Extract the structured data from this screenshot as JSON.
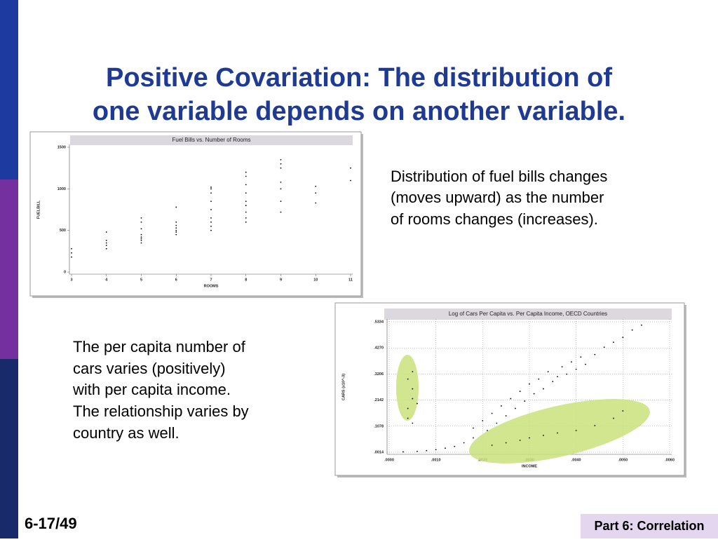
{
  "title": [
    "Positive Covariation: The distribution of",
    "one variable depends on another variable."
  ],
  "note_right": [
    "Distribution of fuel bills changes",
    "(moves upward) as the number",
    "of rooms changes (increases)."
  ],
  "note_left": [
    "The per capita number of",
    "cars varies (positively)",
    "with per capita income.",
    "The relationship varies by",
    "country as well."
  ],
  "footer": {
    "page": "6-17/49",
    "section": "Part 6: Correlation"
  },
  "chart_data": [
    {
      "type": "scatter",
      "title": "Fuel Bills vs. Number of Rooms",
      "x_label": "ROOMS",
      "y_label": "FUELBILL",
      "color": "#000000",
      "grid": false,
      "xlim": [
        3,
        11
      ],
      "xticks": [
        3,
        4,
        5,
        6,
        7,
        8,
        9,
        10,
        11
      ],
      "ylim": [
        0,
        1500
      ],
      "yticks": [
        0,
        500,
        1000,
        1500
      ],
      "x": [
        3,
        3,
        3,
        4,
        4,
        4,
        4,
        4,
        5,
        5,
        5,
        5,
        5,
        5,
        5,
        5,
        6,
        6,
        6,
        6,
        6,
        6,
        6,
        7,
        7,
        7,
        7,
        7,
        7,
        7,
        7,
        7,
        8,
        8,
        8,
        8,
        8,
        8,
        8,
        8,
        8,
        9,
        9,
        9,
        9,
        9,
        9,
        9,
        10,
        10,
        10,
        11,
        11
      ],
      "values": [
        180,
        230,
        280,
        280,
        320,
        350,
        380,
        480,
        350,
        380,
        400,
        420,
        450,
        520,
        600,
        650,
        450,
        480,
        500,
        530,
        560,
        600,
        780,
        500,
        550,
        600,
        650,
        750,
        850,
        950,
        1000,
        1020,
        600,
        650,
        720,
        800,
        850,
        950,
        1050,
        1150,
        1200,
        720,
        850,
        1000,
        1080,
        1250,
        1300,
        1350,
        830,
        950,
        1030,
        1100,
        1250
      ]
    },
    {
      "type": "scatter",
      "title": "Log of Cars Per Capita vs. Per Capita Income, OECD Countries",
      "x_label": "INCOME",
      "y_label": "CARS (x10^-3)",
      "color": "#000000",
      "grid": true,
      "xlim": [
        0,
        0.006
      ],
      "xticks": [
        {
          "value": 0,
          "label": ".0000"
        },
        {
          "value": 0.001,
          "label": ".0010"
        },
        {
          "value": 0.002,
          "label": ".0020"
        },
        {
          "value": 0.003,
          "label": ".0030"
        },
        {
          "value": 0.004,
          "label": ".0040"
        },
        {
          "value": 0.005,
          "label": ".0050"
        },
        {
          "value": 0.006,
          "label": ".0060"
        }
      ],
      "ylim": [
        0.0014,
        0.5334
      ],
      "yticks": [
        {
          "value": 0.0014,
          "label": ".0014"
        },
        {
          "value": 0.1078,
          "label": ".1078"
        },
        {
          "value": 0.2142,
          "label": ".2142"
        },
        {
          "value": 0.3206,
          "label": ".3206"
        },
        {
          "value": 0.427,
          "label": ".4270"
        },
        {
          "value": 0.5334,
          "label": ".5334"
        }
      ],
      "x": [
        0.0004,
        0.0004,
        0.0005,
        0.0005,
        0.0004,
        0.0005,
        0.0006,
        0.0005,
        0.0003,
        0.0006,
        0.0008,
        0.001,
        0.0012,
        0.0014,
        0.0016,
        0.0018,
        0.0018,
        0.002,
        0.0021,
        0.0022,
        0.0023,
        0.0024,
        0.0025,
        0.0026,
        0.0027,
        0.0028,
        0.0029,
        0.003,
        0.0031,
        0.0032,
        0.0033,
        0.0034,
        0.0035,
        0.0036,
        0.0037,
        0.0038,
        0.0039,
        0.004,
        0.0041,
        0.0042,
        0.0044,
        0.0046,
        0.0048,
        0.005,
        0.0052,
        0.0054,
        0.0022,
        0.0025,
        0.0028,
        0.003,
        0.0033,
        0.0036,
        0.004,
        0.0044,
        0.0048,
        0.005
      ],
      "values": [
        0.14,
        0.18,
        0.22,
        0.26,
        0.3,
        0.33,
        0.2,
        0.12,
        0.003,
        0.005,
        0.008,
        0.012,
        0.018,
        0.025,
        0.04,
        0.06,
        0.1,
        0.13,
        0.09,
        0.16,
        0.12,
        0.19,
        0.15,
        0.22,
        0.18,
        0.25,
        0.21,
        0.28,
        0.24,
        0.3,
        0.26,
        0.33,
        0.29,
        0.31,
        0.35,
        0.32,
        0.37,
        0.34,
        0.39,
        0.36,
        0.4,
        0.43,
        0.45,
        0.47,
        0.5,
        0.52,
        0.03,
        0.04,
        0.05,
        0.06,
        0.07,
        0.08,
        0.09,
        0.11,
        0.14,
        0.17
      ]
    }
  ]
}
